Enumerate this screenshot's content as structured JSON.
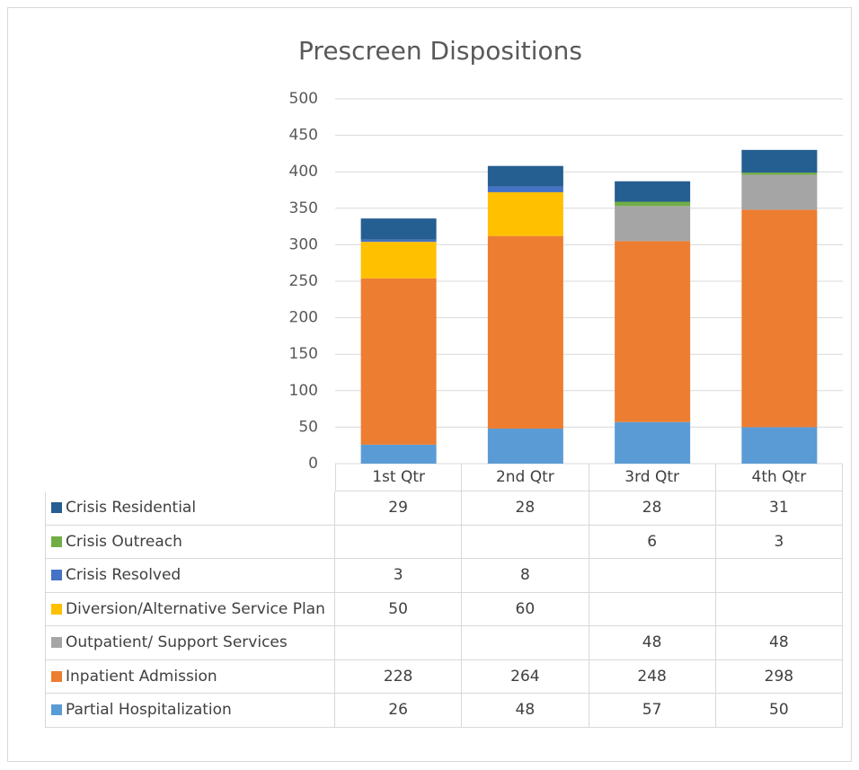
{
  "chart_data": {
    "type": "stacked_bar",
    "title": "Prescreen Dispositions",
    "categories": [
      "1st Qtr",
      "2nd Qtr",
      "3rd Qtr",
      "4th Qtr"
    ],
    "series": [
      {
        "name": "Partial Hospitalization",
        "color": "#5b9bd5",
        "values": [
          26,
          48,
          57,
          50
        ]
      },
      {
        "name": "Inpatient Admission",
        "color": "#ed7d31",
        "values": [
          228,
          264,
          248,
          298
        ]
      },
      {
        "name": "Outpatient/ Support Services",
        "color": "#a5a5a5",
        "values": [
          null,
          null,
          48,
          48
        ]
      },
      {
        "name": "Diversion/Alternative Service Plan",
        "color": "#ffc000",
        "values": [
          50,
          60,
          null,
          null
        ]
      },
      {
        "name": "Crisis Resolved",
        "color": "#4472c4",
        "values": [
          3,
          8,
          null,
          null
        ]
      },
      {
        "name": "Crisis Outreach",
        "color": "#70ad47",
        "values": [
          null,
          null,
          6,
          3
        ]
      },
      {
        "name": "Crisis Residential",
        "color": "#255e91",
        "values": [
          29,
          28,
          28,
          31
        ]
      }
    ],
    "ylim": [
      0,
      500
    ],
    "yticks": [
      0,
      50,
      100,
      150,
      200,
      250,
      300,
      350,
      400,
      450,
      500
    ],
    "grid": true
  }
}
